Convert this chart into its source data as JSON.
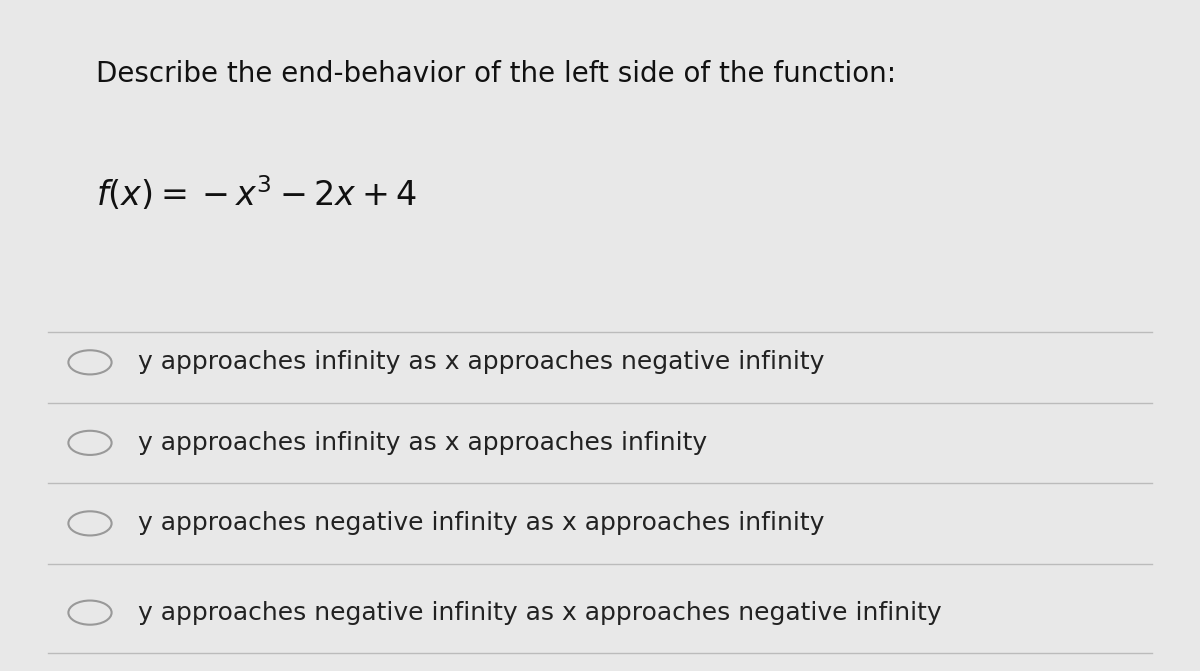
{
  "title": "Describe the end-behavior of the left side of the function:",
  "function_label": "f(x) = −x³ − 2x + 4",
  "options": [
    "y approaches infinity as x approaches negative infinity",
    "y approaches infinity as x approaches infinity",
    "y approaches negative infinity as x approaches infinity",
    "y approaches negative infinity as x approaches negative infinity"
  ],
  "background_color": "#d0d0d0",
  "card_color": "#e8e8e8",
  "title_fontsize": 20,
  "function_fontsize": 22,
  "option_fontsize": 18,
  "title_color": "#111111",
  "option_color": "#222222",
  "divider_color": "#bbbbbb",
  "circle_edge_color": "#999999",
  "circle_face_color": "#e8e8e8"
}
